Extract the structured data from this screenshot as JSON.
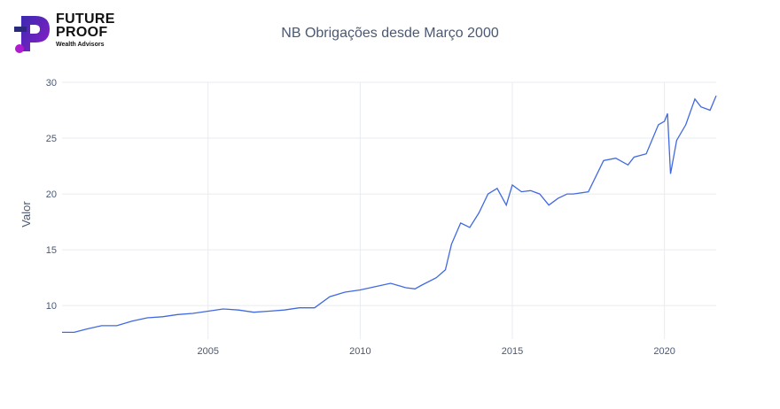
{
  "brand": {
    "line1": "FUTURE",
    "line2": "PROOF",
    "subtitle": "Wealth Advisors",
    "colors": {
      "dark": "#2a2a7a",
      "accent": "#8e1fc8",
      "dot": "#b01ad0"
    }
  },
  "chart_data": {
    "type": "line",
    "title": "NB Obrigações desde Março 2000",
    "xlabel": "",
    "ylabel": "Valor",
    "xlim": [
      2000.2,
      2021.7
    ],
    "ylim": [
      7.0,
      30.0
    ],
    "x_ticks": [
      2005,
      2010,
      2015,
      2020
    ],
    "x_tick_labels": [
      "2005",
      "2010",
      "2015",
      "2020"
    ],
    "y_ticks": [
      10,
      15,
      20,
      25,
      30
    ],
    "y_tick_labels": [
      "10",
      "15",
      "20",
      "25",
      "30"
    ],
    "grid": true,
    "legend": "none",
    "line_color": "#4169e1",
    "series": [
      {
        "x": [
          2000.2,
          2000.6,
          2001.0,
          2001.5,
          2002.0,
          2002.5,
          2003.0,
          2003.5,
          2004.0,
          2004.5,
          2005.0,
          2005.5,
          2006.0,
          2006.5,
          2007.0,
          2007.5,
          2008.0,
          2008.5,
          2009.0,
          2009.5,
          2010.0,
          2010.5,
          2011.0,
          2011.5,
          2011.8,
          2012.0,
          2012.5,
          2012.8,
          2013.0,
          2013.3,
          2013.6,
          2013.9,
          2014.2,
          2014.5,
          2014.8,
          2015.0,
          2015.3,
          2015.6,
          2015.9,
          2016.2,
          2016.5,
          2016.8,
          2017.0,
          2017.5,
          2018.0,
          2018.4,
          2018.8,
          2019.0,
          2019.4,
          2019.8,
          2020.0,
          2020.1,
          2020.2,
          2020.4,
          2020.7,
          2021.0,
          2021.2,
          2021.5,
          2021.7
        ],
        "y": [
          7.6,
          7.6,
          7.9,
          8.2,
          8.2,
          8.6,
          8.9,
          9.0,
          9.2,
          9.3,
          9.5,
          9.7,
          9.6,
          9.4,
          9.5,
          9.6,
          9.8,
          9.8,
          10.8,
          11.2,
          11.4,
          11.7,
          12.0,
          11.6,
          11.5,
          11.8,
          12.5,
          13.2,
          15.5,
          17.4,
          17.0,
          18.3,
          20.0,
          20.5,
          19.0,
          20.8,
          20.2,
          20.3,
          20.0,
          19.0,
          19.6,
          20.0,
          20.0,
          20.2,
          23.0,
          23.2,
          22.6,
          23.3,
          23.6,
          26.2,
          26.5,
          27.2,
          21.8,
          24.8,
          26.2,
          28.5,
          27.8,
          27.5,
          28.8
        ]
      }
    ]
  }
}
